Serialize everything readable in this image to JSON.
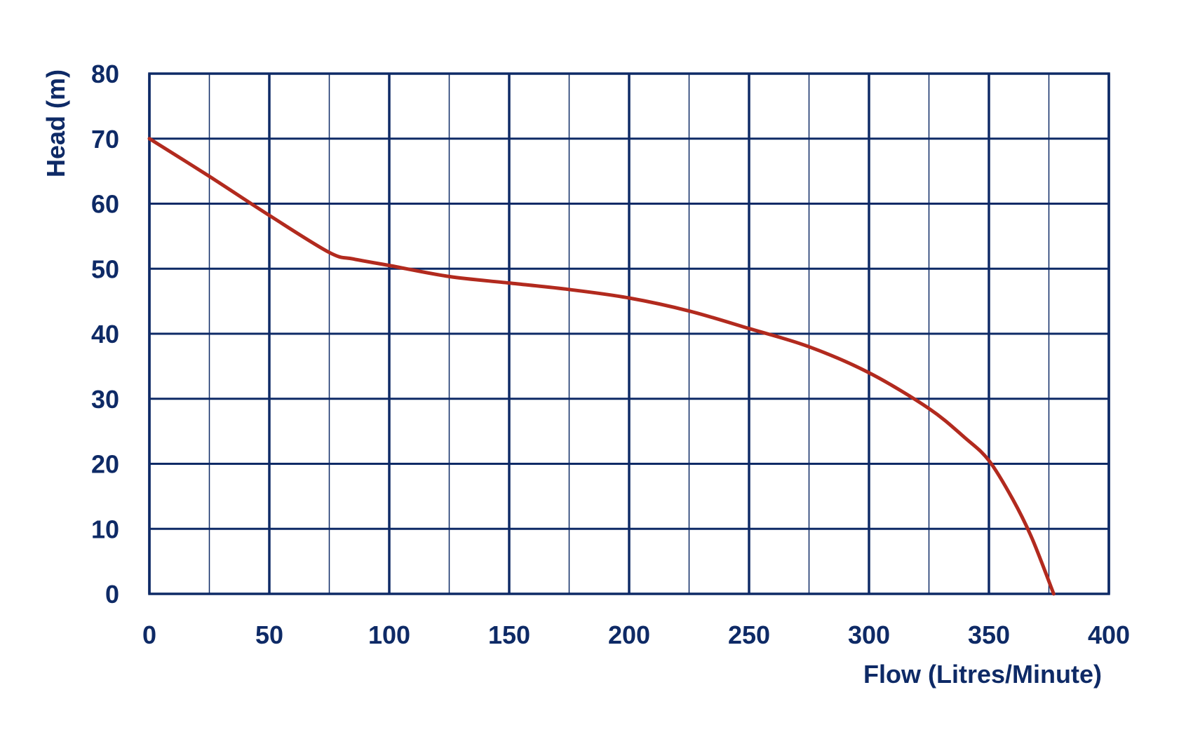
{
  "chart_data": {
    "type": "line",
    "title": "",
    "xlabel": "Flow (Litres/Minute)",
    "ylabel": "Head (m)",
    "xlim": [
      0,
      400
    ],
    "ylim": [
      0,
      80
    ],
    "x_ticks": [
      0,
      50,
      100,
      150,
      200,
      250,
      300,
      350,
      400
    ],
    "y_ticks": [
      0,
      10,
      20,
      30,
      40,
      50,
      60,
      70,
      80
    ],
    "x_ticks_labels": [
      "0",
      "50",
      "100",
      "150",
      "200",
      "250",
      "300",
      "350",
      "400"
    ],
    "y_ticks_labels": [
      "0",
      "10",
      "20",
      "30",
      "40",
      "50",
      "60",
      "70",
      "80"
    ],
    "x_minor_step": 25,
    "grid": true,
    "legend": "none",
    "series": [
      {
        "x": [
          0,
          25,
          50,
          75,
          85,
          100,
          125,
          150,
          175,
          200,
          225,
          250,
          275,
          300,
          325,
          340,
          350,
          360,
          368,
          377
        ],
        "y": [
          70,
          64.2,
          58.2,
          52.5,
          51.5,
          50.5,
          48.8,
          47.8,
          46.8,
          45.5,
          43.5,
          40.8,
          38,
          34,
          28.5,
          24,
          20.5,
          14.5,
          8.5,
          0
        ]
      }
    ],
    "colors": {
      "grid": "#0e2a66",
      "line": "#b22a1e",
      "text": "#0e2a66"
    }
  }
}
